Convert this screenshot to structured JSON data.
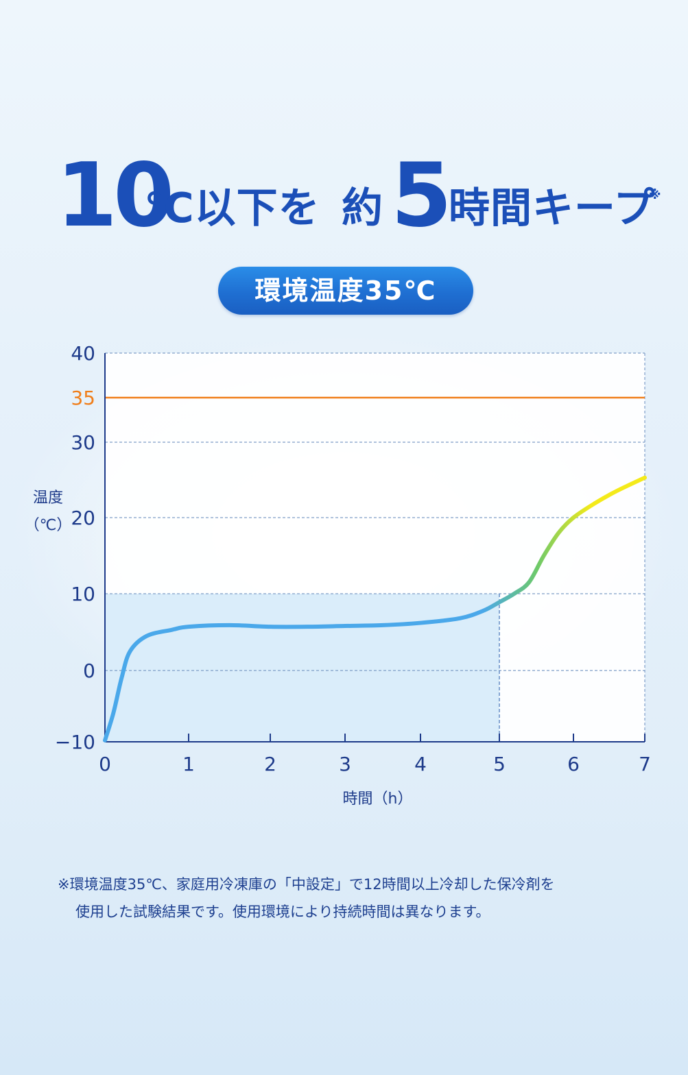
{
  "headline": {
    "num1": "10",
    "unit1": "℃以下を",
    "word": "約",
    "num2": "5",
    "unit2": "時間キープ",
    "mark": "※"
  },
  "condition": "環境温度35℃",
  "footnote": {
    "line1": "※環境温度35℃、家庭用冷凍庫の「中設定」で12時間以上冷却した保冷剤を",
    "line2": "使用した試験結果です。使用環境により持続時間は異なります。"
  },
  "colors": {
    "title": "#1b4fb8",
    "axis": "#1d3a8a",
    "ambient": "#f07e1a",
    "curve_start": "#4aa8ea",
    "curve_mid": "#6cc96a",
    "curve_end": "#f4ea1a",
    "shade": "#d3eaf9"
  },
  "chart_data": {
    "type": "line",
    "xlabel": "時間（h）",
    "ylabel": "温度（℃）",
    "xlim": [
      0,
      7
    ],
    "ylim": [
      -10,
      40
    ],
    "x_ticks": [
      0,
      1,
      2,
      3,
      4,
      5,
      6,
      7
    ],
    "y_ticks": [
      -10,
      0,
      10,
      20,
      30,
      40
    ],
    "highlight_tick": 35,
    "grid": true,
    "ambient_line": 35,
    "shaded_region": {
      "x": [
        0,
        5
      ],
      "y": [
        -10,
        10
      ]
    },
    "series": [
      {
        "x": [
          0,
          0.1,
          0.2,
          0.3,
          0.5,
          0.8,
          1.0,
          1.5,
          2.0,
          2.5,
          3.0,
          3.5,
          4.0,
          4.5,
          4.8,
          5.0,
          5.2,
          5.4,
          5.6,
          5.8,
          6.0,
          6.3,
          6.6,
          7.0
        ],
        "values": [
          -9.8,
          -6.0,
          -1.0,
          2.5,
          4.5,
          5.3,
          5.7,
          5.9,
          5.7,
          5.7,
          5.8,
          5.9,
          6.2,
          6.8,
          7.8,
          8.9,
          10.0,
          11.5,
          15.0,
          18.0,
          20.0,
          21.9,
          23.5,
          25.3
        ]
      }
    ]
  }
}
